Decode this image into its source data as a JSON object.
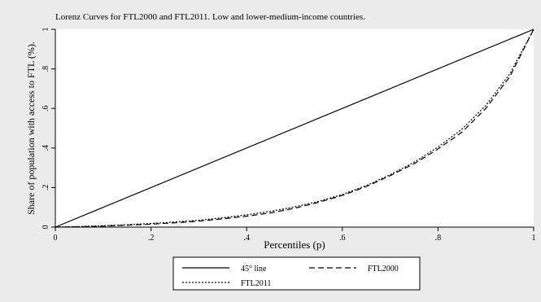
{
  "chart_data": {
    "type": "line",
    "title": "Lorenz Curves for FTL2000 and FTL2011. Low and lower-medium-income countries.",
    "xlabel": "Percentiles (p)",
    "ylabel": "Share of population with access to FTL (%).",
    "xlim": [
      0,
      1
    ],
    "ylim": [
      0,
      1
    ],
    "x_ticks": [
      0,
      0.2,
      0.4,
      0.6,
      0.8,
      1
    ],
    "x_tick_labels": [
      "0",
      ".2",
      ".4",
      ".6",
      ".8",
      "1"
    ],
    "y_ticks": [
      0,
      0.2,
      0.4,
      0.6,
      0.8,
      1
    ],
    "y_tick_labels": [
      "0",
      ".2",
      ".4",
      ".6",
      ".8",
      "1"
    ],
    "grid": false,
    "legend_position": "bottom",
    "series": [
      {
        "name": "45° line",
        "style": "solid",
        "color": "#000000",
        "x": [
          0,
          1
        ],
        "y": [
          0,
          1
        ]
      },
      {
        "name": "FTL2000",
        "style": "dashed",
        "color": "#000000",
        "x": [
          0,
          0.05,
          0.1,
          0.15,
          0.2,
          0.25,
          0.3,
          0.35,
          0.4,
          0.45,
          0.5,
          0.55,
          0.6,
          0.65,
          0.7,
          0.75,
          0.8,
          0.85,
          0.9,
          0.95,
          1
        ],
        "y": [
          0,
          0.002,
          0.005,
          0.01,
          0.015,
          0.022,
          0.03,
          0.042,
          0.055,
          0.072,
          0.095,
          0.125,
          0.16,
          0.205,
          0.26,
          0.32,
          0.395,
          0.48,
          0.6,
          0.76,
          1
        ]
      },
      {
        "name": "FTL2011",
        "style": "dotted",
        "color": "#000000",
        "x": [
          0,
          0.05,
          0.1,
          0.15,
          0.2,
          0.25,
          0.3,
          0.35,
          0.4,
          0.45,
          0.5,
          0.55,
          0.6,
          0.65,
          0.7,
          0.75,
          0.8,
          0.85,
          0.9,
          0.95,
          1
        ],
        "y": [
          0,
          0.003,
          0.007,
          0.012,
          0.018,
          0.026,
          0.035,
          0.047,
          0.062,
          0.08,
          0.102,
          0.13,
          0.165,
          0.21,
          0.265,
          0.328,
          0.405,
          0.495,
          0.615,
          0.775,
          1
        ]
      }
    ]
  }
}
